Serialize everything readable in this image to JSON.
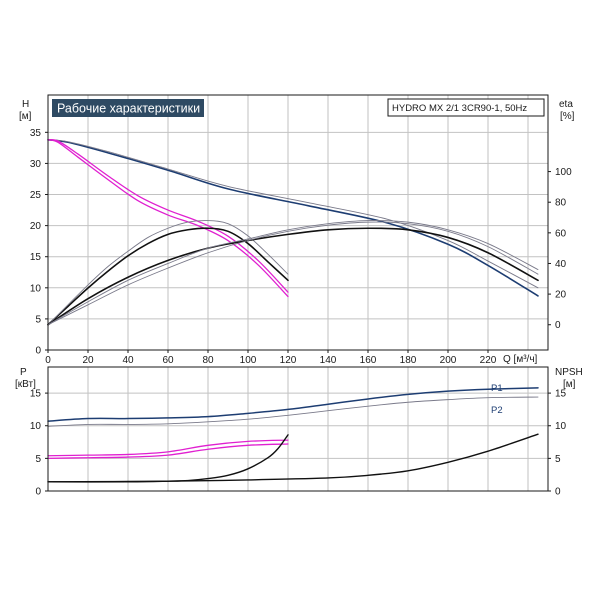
{
  "chart_data": [
    {
      "type": "line",
      "title": "Рабочие характеристики",
      "model_label": "HYDRO MX 2/1 3CR90-1, 50Hz",
      "left_axis": {
        "name": "H",
        "unit": "[м]",
        "ticks": [
          0,
          5,
          10,
          15,
          20,
          25,
          30,
          35
        ],
        "ylim": [
          0,
          41
        ]
      },
      "right_axis": {
        "name": "eta",
        "unit": "[%]",
        "ticks": [
          0,
          20,
          40,
          60,
          80,
          100
        ],
        "ylim": [
          -16.5,
          150
        ]
      },
      "x_axis": {
        "label": "Q [м³/ч]",
        "ticks": [
          0,
          20,
          40,
          60,
          80,
          100,
          120,
          140,
          160,
          180,
          200,
          220
        ],
        "xlim": [
          0,
          250
        ]
      },
      "grid": true,
      "colors": {
        "navy": "#1d3d72",
        "magenta": "#e020d0",
        "gray": "#7a7a8a",
        "black": "#111111"
      },
      "series": [
        {
          "color": "navy",
          "width": 1.6,
          "x": [
            0,
            10,
            30,
            60,
            90,
            130,
            170,
            200,
            220,
            245
          ],
          "y": [
            33.8,
            33.4,
            31.7,
            28.9,
            25.9,
            23.2,
            20.4,
            17.0,
            13.6,
            8.7
          ]
        },
        {
          "color": "gray",
          "width": 0.9,
          "x": [
            0,
            10,
            30,
            60,
            90,
            130,
            170,
            200,
            220,
            245
          ],
          "y": [
            33.8,
            33.5,
            31.9,
            29.1,
            26.3,
            23.7,
            21.0,
            17.6,
            14.3,
            10.0
          ]
        },
        {
          "color": "magenta",
          "width": 1.3,
          "x": [
            0,
            5,
            15,
            30,
            45,
            60,
            75,
            90,
            105,
            120
          ],
          "y": [
            33.8,
            33.6,
            31.5,
            28.0,
            24.8,
            22.5,
            20.7,
            18.3,
            14.4,
            9.3
          ]
        },
        {
          "color": "magenta",
          "width": 1.3,
          "x": [
            0,
            5,
            15,
            30,
            45,
            60,
            75,
            90,
            105,
            120
          ],
          "y": [
            33.8,
            33.4,
            31.0,
            27.4,
            24.0,
            21.7,
            20.0,
            17.6,
            13.7,
            8.6
          ]
        },
        {
          "color": "black",
          "axis": "right",
          "width": 1.6,
          "x": [
            0,
            10,
            20,
            30,
            40,
            50,
            60,
            70,
            80,
            90,
            100,
            110,
            120
          ],
          "y": [
            0,
            12,
            24,
            35,
            45,
            53,
            59,
            62,
            63,
            61,
            53,
            41,
            29
          ]
        },
        {
          "color": "gray",
          "axis": "right",
          "width": 0.9,
          "x": [
            0,
            10,
            20,
            30,
            40,
            50,
            60,
            70,
            80,
            90,
            100,
            110,
            120
          ],
          "y": [
            0,
            13,
            26,
            38,
            48,
            57,
            63,
            67,
            68,
            66,
            58,
            46,
            33
          ]
        },
        {
          "color": "black",
          "axis": "right",
          "width": 1.6,
          "x": [
            0,
            20,
            40,
            60,
            80,
            100,
            120,
            140,
            160,
            180,
            200,
            220,
            245
          ],
          "y": [
            0,
            17,
            31,
            42,
            50,
            55,
            59,
            62,
            63,
            62,
            57,
            47,
            29
          ]
        },
        {
          "color": "gray",
          "axis": "right",
          "width": 0.9,
          "x": [
            0,
            20,
            40,
            60,
            80,
            100,
            120,
            140,
            160,
            180,
            200,
            220,
            245
          ],
          "y": [
            0,
            15,
            29,
            40,
            50,
            56,
            62,
            66,
            68,
            67,
            62,
            53,
            36
          ]
        },
        {
          "color": "gray",
          "axis": "right",
          "width": 0.9,
          "x": [
            0,
            20,
            40,
            60,
            80,
            100,
            120,
            140,
            160,
            180,
            200,
            220,
            245
          ],
          "y": [
            0,
            13,
            26,
            37,
            47,
            55,
            61,
            65,
            67,
            66,
            61,
            51,
            33
          ]
        }
      ]
    },
    {
      "type": "line",
      "left_axis": {
        "name": "P",
        "unit": "[кВт]",
        "ticks": [
          0,
          5,
          10,
          15
        ],
        "ylim": [
          0,
          19
        ]
      },
      "right_axis": {
        "name": "NPSH",
        "unit": "[м]",
        "ticks": [
          0,
          5,
          10,
          15
        ],
        "ylim": [
          0,
          19
        ]
      },
      "xlim": [
        0,
        250
      ],
      "grid": true,
      "series": [
        {
          "name": "P1",
          "color": "navy",
          "width": 1.5,
          "x": [
            0,
            20,
            40,
            60,
            80,
            100,
            120,
            140,
            160,
            180,
            200,
            220,
            245
          ],
          "y": [
            10.7,
            11.1,
            11.1,
            11.2,
            11.4,
            11.9,
            12.5,
            13.3,
            14.1,
            14.8,
            15.3,
            15.6,
            15.8
          ]
        },
        {
          "name": "P2",
          "color": "gray",
          "width": 0.9,
          "x": [
            0,
            20,
            40,
            60,
            80,
            100,
            120,
            140,
            160,
            180,
            200,
            220,
            245
          ],
          "y": [
            9.9,
            10.2,
            10.2,
            10.3,
            10.6,
            11.0,
            11.6,
            12.3,
            13.0,
            13.6,
            14.0,
            14.3,
            14.4
          ]
        },
        {
          "color": "magenta",
          "width": 1.3,
          "x": [
            0,
            20,
            40,
            60,
            80,
            100,
            120
          ],
          "y": [
            5.4,
            5.5,
            5.6,
            6.0,
            7.0,
            7.6,
            7.8
          ]
        },
        {
          "color": "magenta",
          "width": 1.3,
          "x": [
            0,
            20,
            40,
            60,
            80,
            100,
            120
          ],
          "y": [
            5.0,
            5.1,
            5.2,
            5.5,
            6.4,
            7.0,
            7.2
          ]
        },
        {
          "color": "black",
          "axis": "right",
          "width": 1.4,
          "x": [
            0,
            40,
            60,
            70,
            80,
            90,
            100,
            110,
            115,
            120
          ],
          "y": [
            1.4,
            1.4,
            1.5,
            1.6,
            1.9,
            2.4,
            3.4,
            5.1,
            6.5,
            8.6
          ]
        },
        {
          "color": "black",
          "axis": "right",
          "width": 1.4,
          "x": [
            0,
            60,
            100,
            140,
            160,
            180,
            200,
            220,
            245
          ],
          "y": [
            1.4,
            1.5,
            1.7,
            2.0,
            2.4,
            3.1,
            4.4,
            6.1,
            8.7
          ]
        }
      ],
      "series_labels": [
        "P1",
        "P2"
      ]
    }
  ]
}
